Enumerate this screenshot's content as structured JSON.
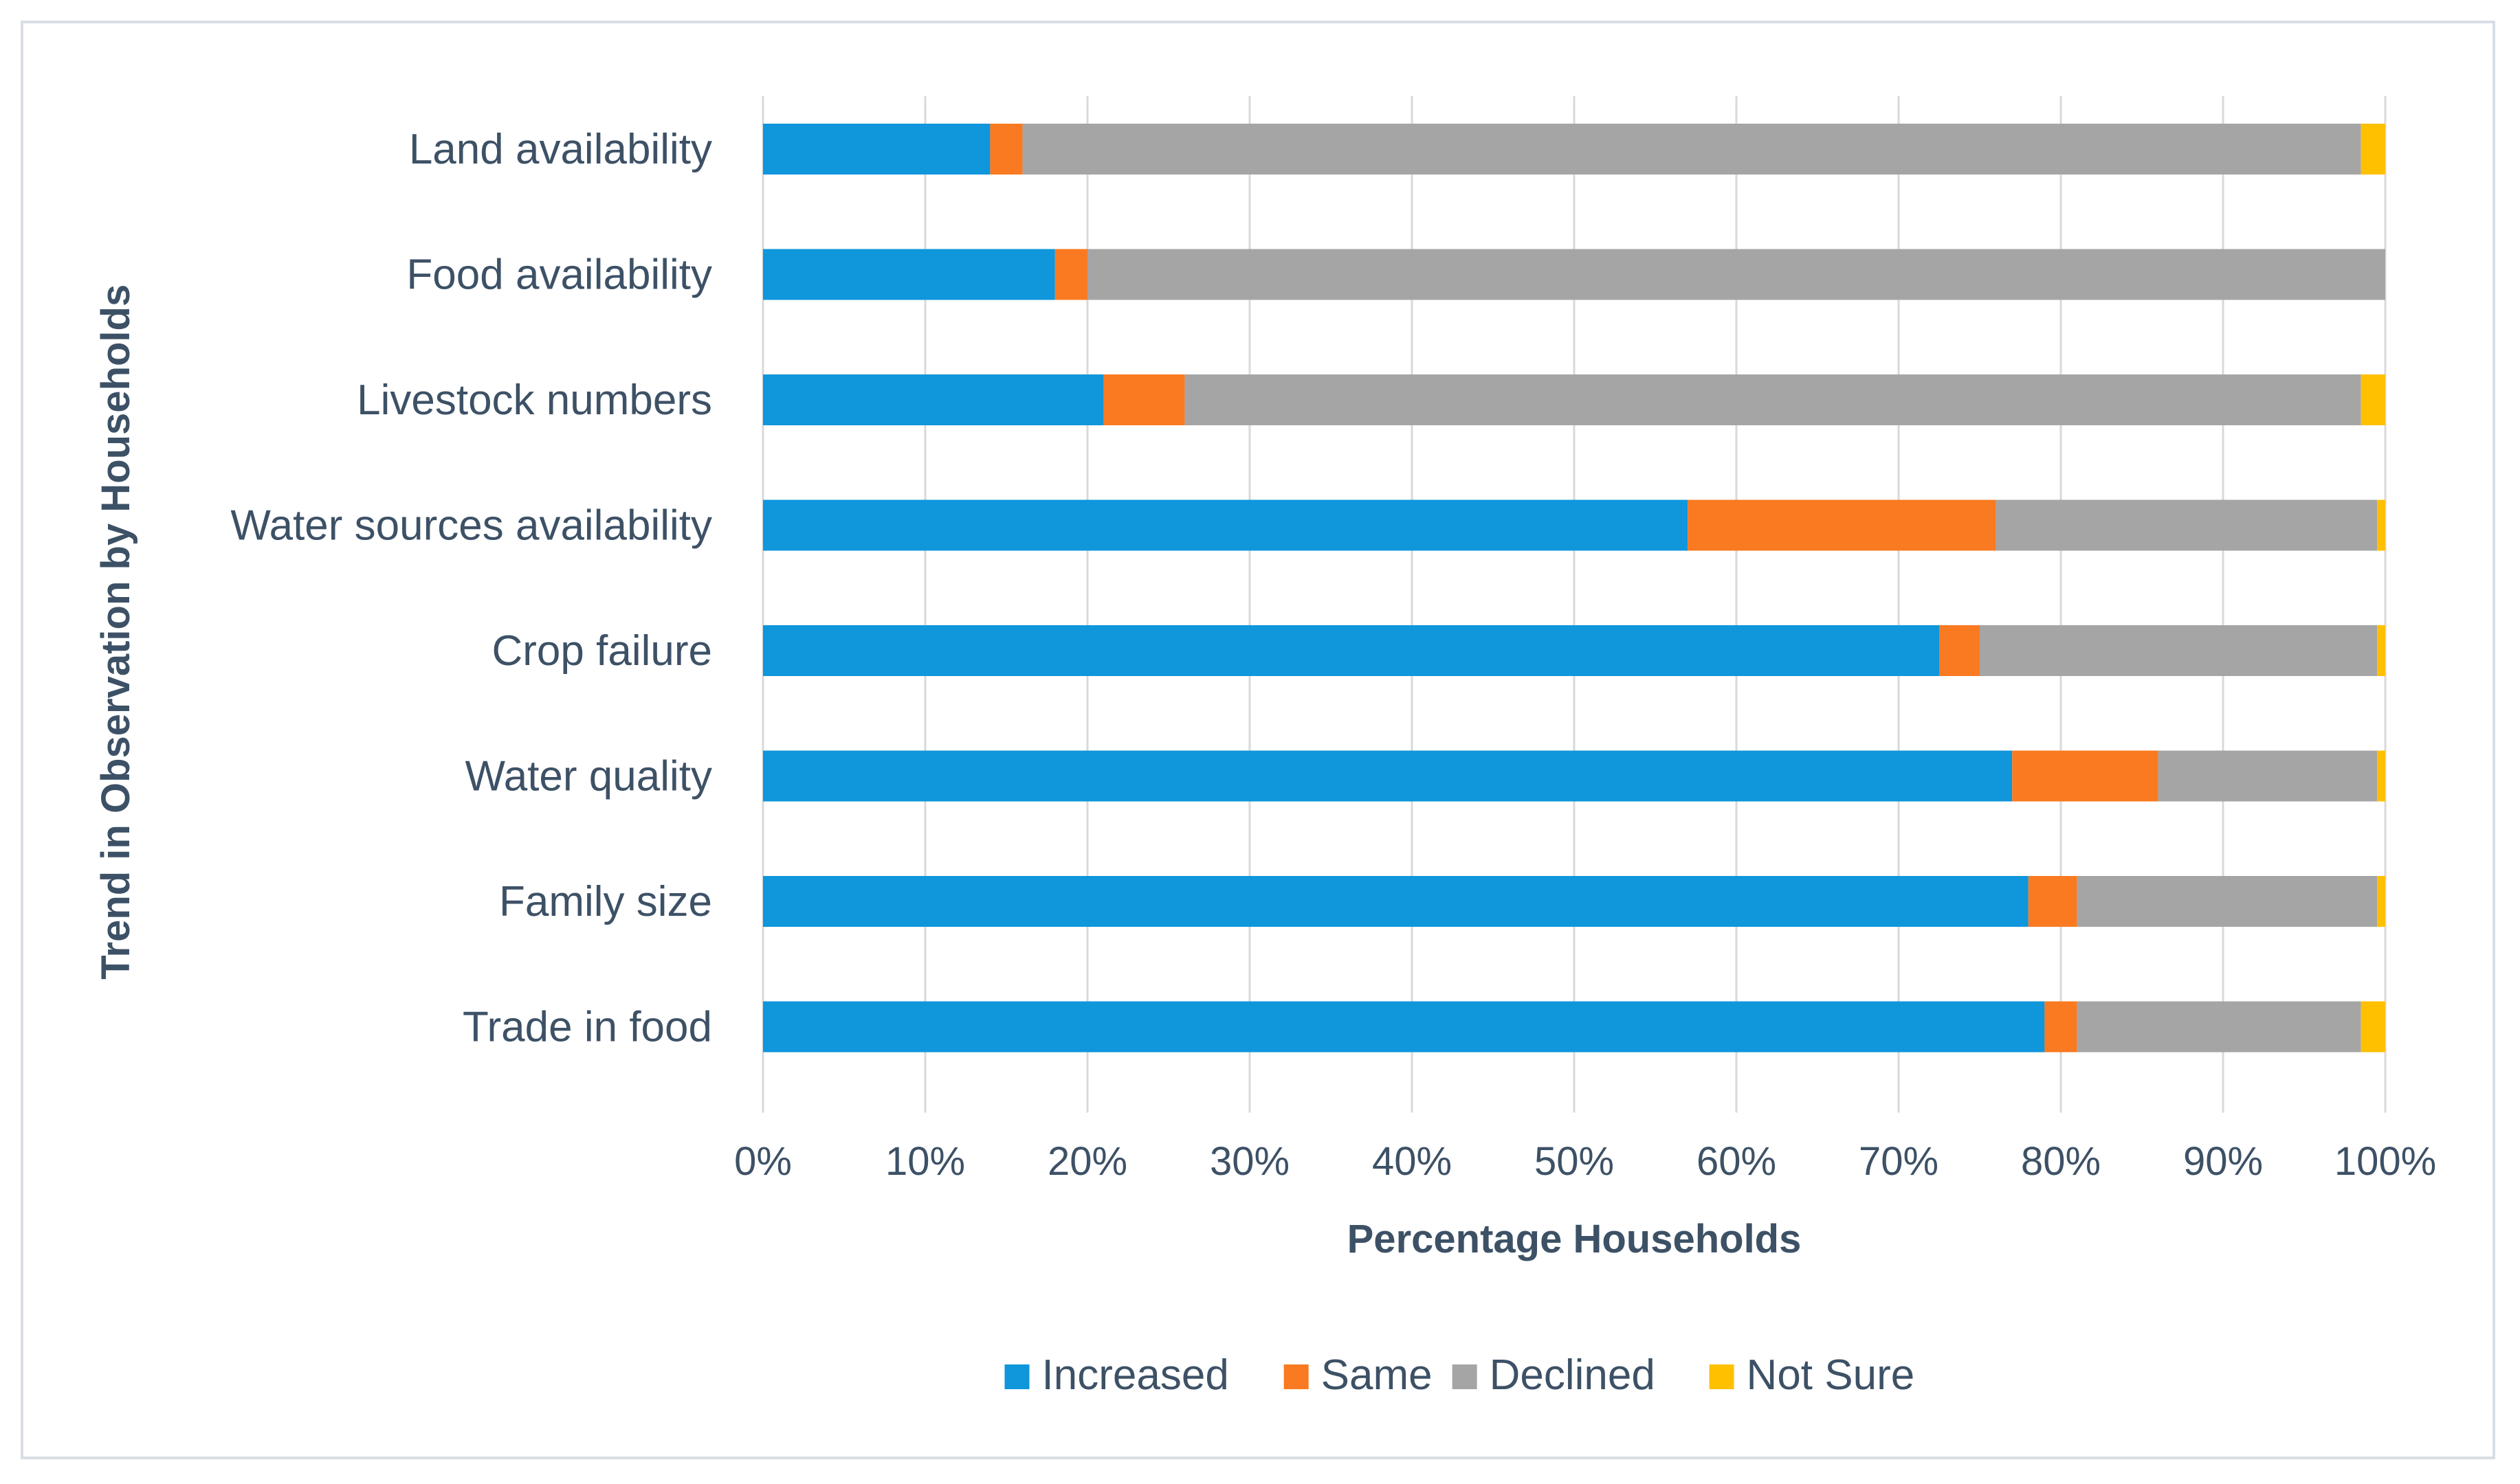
{
  "chart_data": {
    "type": "bar",
    "orientation": "horizontal",
    "stacked": true,
    "percent_stacked": true,
    "title": "",
    "xlabel": "Percentage Households",
    "ylabel": "Trend in Observation by Households",
    "xlim": [
      0,
      100
    ],
    "x_ticks": [
      "0%",
      "10%",
      "20%",
      "30%",
      "40%",
      "50%",
      "60%",
      "70%",
      "80%",
      "90%",
      "100%"
    ],
    "grid": "vertical",
    "legend_position": "bottom",
    "categories": [
      "Land availability",
      "Food availability",
      "Livestock numbers",
      "Water sources availability",
      "Crop failure",
      "Water quality",
      "Family size",
      "Trade in food"
    ],
    "series": [
      {
        "name": "Increased",
        "color": "#0f96db",
        "values": [
          14,
          18,
          21,
          57,
          72.5,
          77,
          78,
          79
        ]
      },
      {
        "name": "Same",
        "color": "#f97a21",
        "values": [
          2,
          2,
          5,
          19,
          2.5,
          9,
          3,
          2
        ]
      },
      {
        "name": "Declined",
        "color": "#a5a5a5",
        "values": [
          82.5,
          80,
          72.5,
          23.5,
          24.5,
          13.5,
          18.5,
          17.5
        ]
      },
      {
        "name": "Not Sure",
        "color": "#ffc000",
        "values": [
          1.5,
          0,
          1.5,
          0.5,
          0.5,
          0.5,
          0.5,
          1.5
        ]
      }
    ]
  }
}
